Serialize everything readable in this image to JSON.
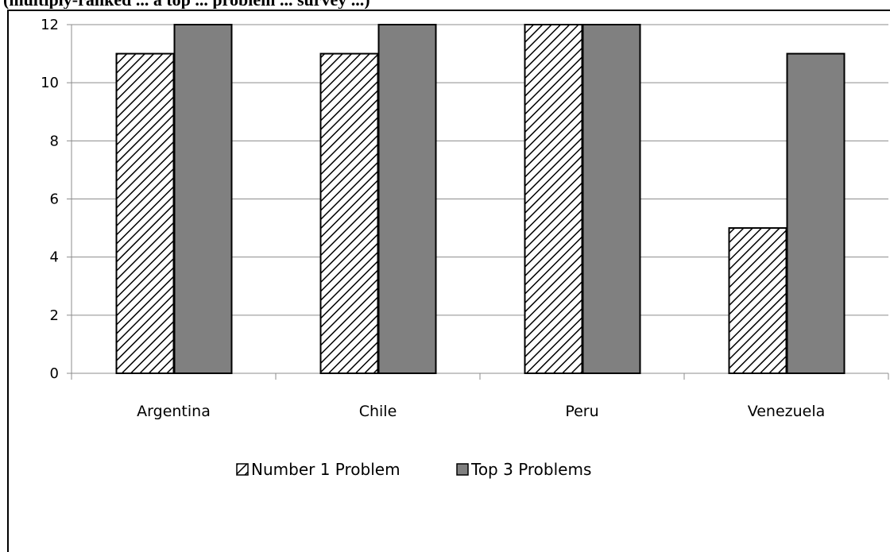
{
  "page_title_fragment": "(multiply-ranked ... a top ... problem ... survey ...)",
  "chart_data": {
    "type": "bar",
    "title": "",
    "xlabel": "",
    "ylabel": "",
    "ylim": [
      0,
      12
    ],
    "yticks": [
      0,
      2,
      4,
      6,
      8,
      10,
      12
    ],
    "categories": [
      "Argentina",
      "Chile",
      "Peru",
      "Venezuela"
    ],
    "series": [
      {
        "name": "Number 1 Problem",
        "values": [
          11,
          11,
          12,
          5
        ],
        "pattern": "diagonal-hatch",
        "color": "#ffffff",
        "stroke": "#000000"
      },
      {
        "name": "Top 3 Problems",
        "values": [
          12,
          12,
          12,
          11
        ],
        "pattern": "solid",
        "color": "#808080",
        "stroke": "#000000"
      }
    ],
    "grid": true,
    "legend_position": "bottom"
  }
}
